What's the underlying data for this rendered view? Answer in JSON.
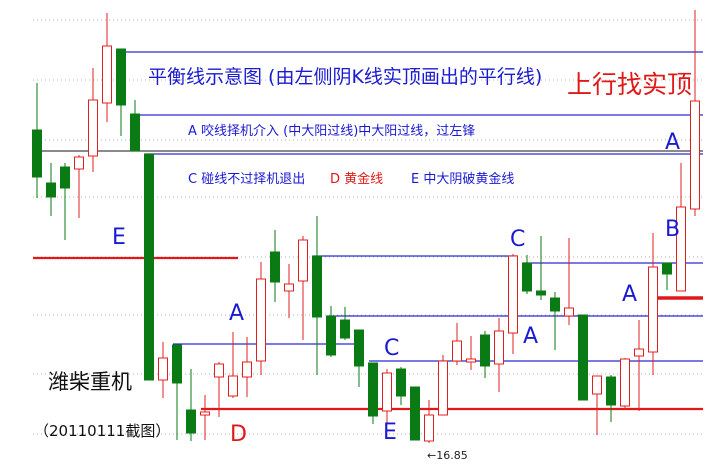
{
  "colors": {
    "up": "#e02020",
    "down": "#0a7a14",
    "balance_line": "#2a2ad0",
    "gold_line": "#e01818",
    "grid": "#b0b0b0",
    "label_blue": "#1a1ad0",
    "label_red": "#e01818"
  },
  "annotations": {
    "title": "平衡线示意图 (由左侧阴K线实顶画出的平行线)",
    "up_find_top": "上行找实顶",
    "legend_a": "A 咬线择机介入 (中大阳过线)中大阳过线，过左锋",
    "legend_c": "C 碰线不过择机退出",
    "legend_d": "D 黄金线",
    "legend_e": "E 中大阴破黄金线",
    "stock_name": "潍柴重机",
    "capture_date": "（20110111截图）",
    "low_price": "←16.85",
    "points": [
      "E",
      "A",
      "D",
      "C",
      "E",
      "C",
      "A",
      "A",
      "B",
      "A"
    ]
  },
  "chart_data": {
    "type": "candlestick",
    "title": "平衡线示意图 (由左侧阴K线实顶画出的平行线)",
    "grid": true,
    "ohlc": [
      [
        23.11,
        24.05,
        21.75,
        22.17
      ],
      [
        22.05,
        22.45,
        21.39,
        21.77
      ],
      [
        22.37,
        22.45,
        20.91,
        21.95
      ],
      [
        22.33,
        22.61,
        21.35,
        22.57
      ],
      [
        22.59,
        24.35,
        22.27,
        23.71
      ],
      [
        23.65,
        25.45,
        23.27,
        24.79
      ],
      [
        24.73,
        24.73,
        22.99,
        23.61
      ],
      [
        23.43,
        23.71,
        22.69,
        22.69
      ],
      [
        22.63,
        22.63,
        18.11,
        18.11
      ],
      [
        18.11,
        18.87,
        17.75,
        18.55
      ],
      [
        18.81,
        18.81,
        16.91,
        18.05
      ],
      [
        17.51,
        18.33,
        16.89,
        17.05
      ],
      [
        17.41,
        17.81,
        16.91,
        17.47
      ],
      [
        18.17,
        18.47,
        17.37,
        18.43
      ],
      [
        17.79,
        19.07,
        17.75,
        18.19
      ],
      [
        18.17,
        18.97,
        17.77,
        18.47
      ],
      [
        18.49,
        20.47,
        18.21,
        20.13
      ],
      [
        20.67,
        21.11,
        19.67,
        20.07
      ],
      [
        19.89,
        20.43,
        19.35,
        20.03
      ],
      [
        20.09,
        20.99,
        18.91,
        20.91
      ],
      [
        20.59,
        21.39,
        18.21,
        19.37
      ],
      [
        19.39,
        19.59,
        18.57,
        18.61
      ],
      [
        19.31,
        19.57,
        18.91,
        18.95
      ],
      [
        19.11,
        19.11,
        17.97,
        18.39
      ],
      [
        18.45,
        18.45,
        17.23,
        17.39
      ],
      [
        17.49,
        18.33,
        17.23,
        18.25
      ],
      [
        18.33,
        18.37,
        17.61,
        17.79
      ],
      [
        17.97,
        17.97,
        16.91,
        16.91
      ],
      [
        16.89,
        17.71,
        16.85,
        17.41
      ],
      [
        17.41,
        18.61,
        17.41,
        18.49
      ],
      [
        18.49,
        19.25,
        18.41,
        18.89
      ],
      [
        18.47,
        18.99,
        18.31,
        18.53
      ],
      [
        19.01,
        19.09,
        18.15,
        18.39
      ],
      [
        18.43,
        19.35,
        17.87,
        19.09
      ],
      [
        19.05,
        20.63,
        18.63,
        20.59
      ],
      [
        20.45,
        20.61,
        19.83,
        19.89
      ],
      [
        19.89,
        20.99,
        19.71,
        19.81
      ],
      [
        19.75,
        19.87,
        18.71,
        19.49
      ],
      [
        19.39,
        20.95,
        19.21,
        19.55
      ],
      [
        19.41,
        19.41,
        17.71,
        17.71
      ],
      [
        17.83,
        18.19,
        17.01,
        18.19
      ],
      [
        18.17,
        18.21,
        17.27,
        17.61
      ],
      [
        17.59,
        18.55,
        17.51,
        18.53
      ],
      [
        18.59,
        19.31,
        17.49,
        18.73
      ],
      [
        18.67,
        21.05,
        18.21,
        20.37
      ],
      [
        20.45,
        20.45,
        19.91,
        20.23
      ],
      [
        19.89,
        22.45,
        19.89,
        21.57
      ],
      [
        21.53,
        25.51,
        21.39,
        23.69
      ]
    ],
    "lines": [
      {
        "kind": "balance",
        "price": 24.67,
        "from": 7,
        "to": 48
      },
      {
        "kind": "balance",
        "price": 23.41,
        "from": 8,
        "to": 48
      },
      {
        "kind": "base",
        "price": 22.69,
        "from": 1,
        "to": 48
      },
      {
        "kind": "balance",
        "price": 22.63,
        "from": 9,
        "to": 48
      },
      {
        "kind": "balance",
        "price": 20.59,
        "from": 21,
        "to": 35
      },
      {
        "kind": "balance",
        "price": 20.45,
        "from": 36,
        "to": 48
      },
      {
        "kind": "balance",
        "price": 19.39,
        "from": 22,
        "to": 48
      },
      {
        "kind": "balance",
        "price": 18.83,
        "from": 11,
        "to": 24
      },
      {
        "kind": "balance",
        "price": 18.49,
        "from": 25,
        "to": 48
      },
      {
        "kind": "gold",
        "price": 20.55,
        "from": 1,
        "to": 15
      },
      {
        "kind": "gold",
        "price": 17.53,
        "from": 13,
        "to": 48
      },
      {
        "kind": "gold_thick",
        "price": 19.75,
        "from": 45,
        "to": 48
      }
    ],
    "low_marker": 16.85
  }
}
